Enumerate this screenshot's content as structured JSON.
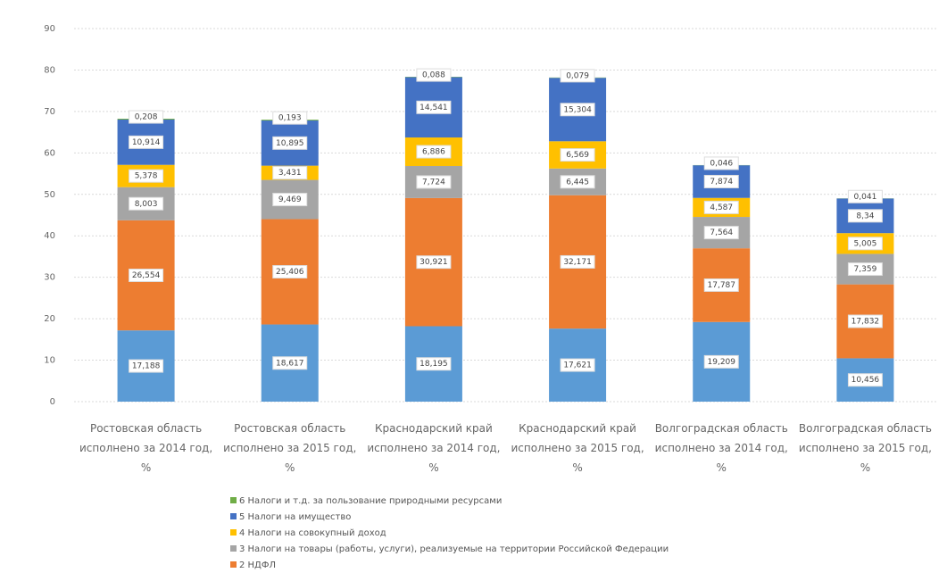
{
  "chart_data": {
    "type": "stacked_bar",
    "categories": [
      "Ростовская область исполнено за 2014 год, %",
      "Ростовская область исполнено за 2015 год, %",
      "Краснодарский край исполнено за 2014 год, %",
      "Краснодарский край исполнено за 2015 год, %",
      "Волгоградская область исполнено за 2014 год, %",
      "Волгоградская область исполнено за 2015 год, %"
    ],
    "series": [
      {
        "color": "#5b9bd5",
        "values": [
          17.188,
          18.617,
          18.195,
          17.621,
          19.209,
          10.456
        ],
        "value_labels": [
          "17,188",
          "18,617",
          "18,195",
          "17,621",
          "19,209",
          "10,456"
        ]
      },
      {
        "name": "2 НДФЛ",
        "color": "#ed7d31",
        "values": [
          26.554,
          25.406,
          30.921,
          32.171,
          17.787,
          17.832
        ],
        "value_labels": [
          "26,554",
          "25,406",
          "30,921",
          "32,171",
          "17,787",
          "17,832"
        ]
      },
      {
        "name": "3 Налоги на товары (работы, услуги), реализуемые на территории Российской Федерации",
        "color": "#a5a5a5",
        "values": [
          8.003,
          9.469,
          7.724,
          6.445,
          7.564,
          7.359
        ],
        "value_labels": [
          "8,003",
          "9,469",
          "7,724",
          "6,445",
          "7,564",
          "7,359"
        ]
      },
      {
        "name": "4 Налоги на совокупный доход",
        "color": "#ffc000",
        "values": [
          5.378,
          3.431,
          6.886,
          6.569,
          4.587,
          5.005
        ],
        "value_labels": [
          "5,378",
          "3,431",
          "6,886",
          "6,569",
          "4,587",
          "5,005"
        ]
      },
      {
        "name": "5 Налоги на имущество",
        "color": "#4472c4",
        "values": [
          10.914,
          10.895,
          14.541,
          15.304,
          7.874,
          8.34
        ],
        "value_labels": [
          "10,914",
          "10,895",
          "14,541",
          "15,304",
          "7,874",
          "8,34"
        ]
      },
      {
        "name": "6 Налоги и т.д. за пользование природными ресурсами",
        "color": "#70ad47",
        "values": [
          0.208,
          0.193,
          0.088,
          0.079,
          0.046,
          0.041
        ],
        "value_labels": [
          "0,208",
          "0,193",
          "0,088",
          "0,079",
          "0,046",
          "0,041"
        ]
      }
    ],
    "ylim": [
      0,
      90
    ],
    "yticks": [
      0,
      10,
      20,
      30,
      40,
      50,
      60,
      70,
      80,
      90
    ],
    "grid": true
  }
}
